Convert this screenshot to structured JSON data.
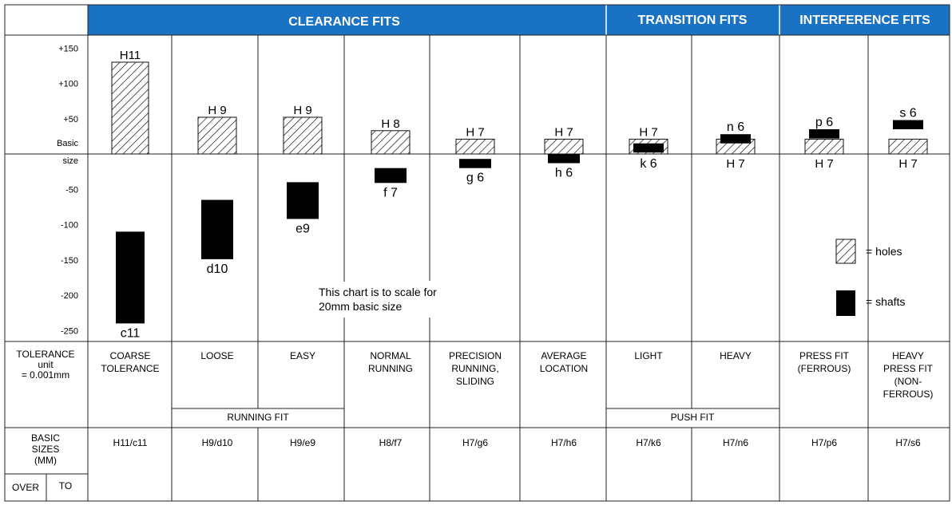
{
  "header": {
    "groups": [
      {
        "label": "CLEARANCE FITS"
      },
      {
        "label": "TRANSITION FITS"
      },
      {
        "label": "INTERFERENCE FITS"
      }
    ],
    "color": "#1a72c4",
    "text_color": "#ffffff"
  },
  "axis": {
    "ticks": [
      {
        "value": 150,
        "label": "+150"
      },
      {
        "value": 100,
        "label": "+100"
      },
      {
        "value": 50,
        "label": "+50"
      },
      {
        "value": -50,
        "label": "-50"
      },
      {
        "value": -100,
        "label": "-100"
      },
      {
        "value": -150,
        "label": "-150"
      },
      {
        "value": -200,
        "label": "-200"
      },
      {
        "value": -250,
        "label": "-250"
      }
    ],
    "basic_label": "Basic",
    "size_label": "size"
  },
  "chart_data": {
    "type": "bar",
    "unit": "0.001mm",
    "columns": [
      {
        "hole": "H11",
        "hole_range": [
          0,
          130
        ],
        "shaft": "c11",
        "shaft_range": [
          -240,
          -110
        ]
      },
      {
        "hole": "H 9",
        "hole_range": [
          0,
          52
        ],
        "shaft": "d10",
        "shaft_range": [
          -149,
          -65
        ]
      },
      {
        "hole": "H 9",
        "hole_range": [
          0,
          52
        ],
        "shaft": "e9",
        "shaft_range": [
          -92,
          -40
        ]
      },
      {
        "hole": "H 8",
        "hole_range": [
          0,
          33
        ],
        "shaft": "f 7",
        "shaft_range": [
          -41,
          -20
        ]
      },
      {
        "hole": "H 7",
        "hole_range": [
          0,
          21
        ],
        "shaft": "g 6",
        "shaft_range": [
          -20,
          -7
        ]
      },
      {
        "hole": "H 7",
        "hole_range": [
          0,
          21
        ],
        "shaft": "h 6",
        "shaft_range": [
          -13,
          0
        ]
      },
      {
        "hole": "H 7",
        "hole_range": [
          0,
          21
        ],
        "shaft": "k 6",
        "shaft_range": [
          2,
          15
        ]
      },
      {
        "hole": "H 7",
        "hole_range": [
          0,
          21
        ],
        "shaft": "n 6",
        "shaft_range": [
          15,
          28
        ]
      },
      {
        "hole": "H 7",
        "hole_range": [
          0,
          21
        ],
        "shaft": "p 6",
        "shaft_range": [
          22,
          35
        ]
      },
      {
        "hole": "H 7",
        "hole_range": [
          0,
          21
        ],
        "shaft": "s 6",
        "shaft_range": [
          35,
          48
        ]
      }
    ],
    "note_lines": [
      "This chart is to scale for",
      "20mm basic size"
    ],
    "legend": {
      "holes": "= holes",
      "shafts": "= shafts"
    }
  },
  "table": {
    "tolerance_label": [
      "TOLERANCE",
      "unit",
      "= 0.001mm"
    ],
    "descriptions": [
      [
        "COARSE",
        "TOLERANCE"
      ],
      [
        "LOOSE"
      ],
      [
        "EASY"
      ],
      [
        "NORMAL",
        "RUNNING"
      ],
      [
        "PRECISION",
        "RUNNING,",
        "SLIDING"
      ],
      [
        "AVERAGE",
        "LOCATION"
      ],
      [
        "LIGHT"
      ],
      [
        "HEAVY"
      ],
      [
        "PRESS FIT",
        "(FERROUS)"
      ],
      [
        "HEAVY",
        "PRESS FIT",
        "(NON-",
        "FERROUS)"
      ]
    ],
    "running_fit": "RUNNING FIT",
    "push_fit": "PUSH FIT",
    "basic_sizes_label": [
      "BASIC",
      "SIZES",
      "(MM)"
    ],
    "over": "OVER",
    "to": "TO",
    "fit_codes": [
      "H11/c11",
      "H9/d10",
      "H9/e9",
      "H8/f7",
      "H7/g6",
      "H7/h6",
      "H7/k6",
      "H7/n6",
      "H7/p6",
      "H7/s6"
    ]
  }
}
